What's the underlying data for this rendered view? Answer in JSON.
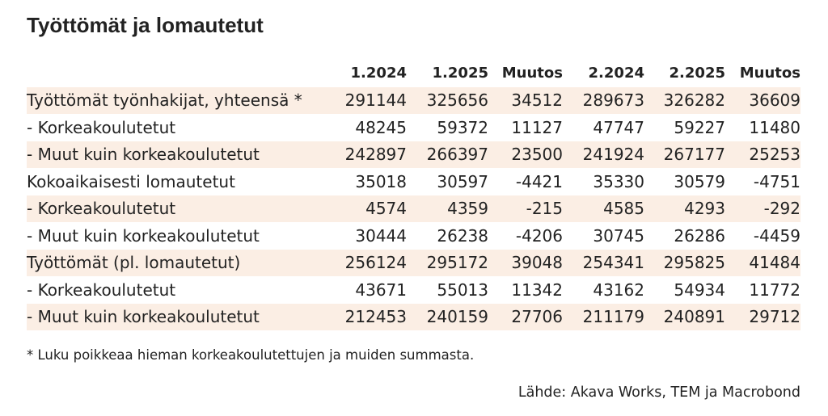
{
  "title": "Työttömät ja lomautetut",
  "table": {
    "columns": [
      "1.2024",
      "1.2025",
      "Muutos",
      "2.2024",
      "2.2025",
      "Muutos"
    ],
    "rows": [
      {
        "label": "Työttömät työnhakijat, yhteensä *",
        "values": [
          291144,
          325656,
          34512,
          289673,
          326282,
          36609
        ]
      },
      {
        "label": "- Korkeakoulutetut",
        "values": [
          48245,
          59372,
          11127,
          47747,
          59227,
          11480
        ]
      },
      {
        "label": "- Muut kuin korkeakoulutetut",
        "values": [
          242897,
          266397,
          23500,
          241924,
          267177,
          25253
        ]
      },
      {
        "label": "Kokoaikaisesti lomautetut",
        "values": [
          35018,
          30597,
          -4421,
          35330,
          30579,
          -4751
        ]
      },
      {
        "label": "- Korkeakoulutetut",
        "values": [
          4574,
          4359,
          -215,
          4585,
          4293,
          -292
        ]
      },
      {
        "label": "- Muut kuin korkeakoulutetut",
        "values": [
          30444,
          26238,
          -4206,
          30745,
          26286,
          -4459
        ]
      },
      {
        "label": "Työttömät (pl. lomautetut)",
        "values": [
          256124,
          295172,
          39048,
          254341,
          295825,
          41484
        ]
      },
      {
        "label": "- Korkeakoulutetut",
        "values": [
          43671,
          55013,
          11342,
          43162,
          54934,
          11772
        ]
      },
      {
        "label": "- Muut kuin korkeakoulutetut",
        "values": [
          212453,
          240159,
          27706,
          211179,
          240891,
          29712
        ]
      }
    ]
  },
  "footnote": "* Luku poikkeaa hieman korkeakoulutettujen ja muiden summasta.",
  "source": "Lähde: Akava Works, TEM ja Macrobond"
}
